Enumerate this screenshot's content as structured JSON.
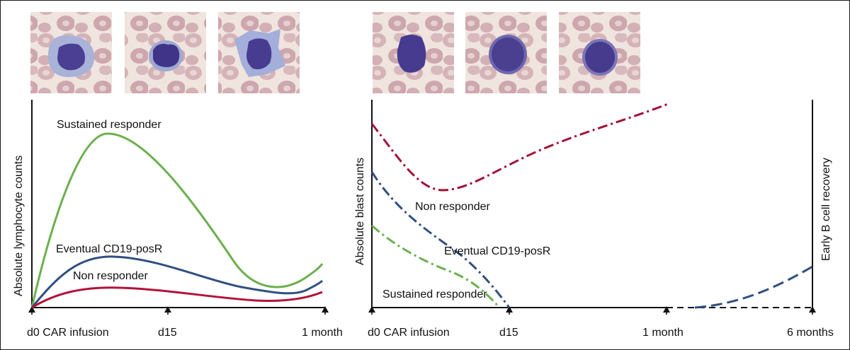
{
  "left_panel": {
    "y_axis_label": "Absolute lymphocyte counts",
    "x_ticks": [
      "d0 CAR infusion",
      "d15",
      "1 month"
    ],
    "curves": [
      {
        "label": "Sustained responder",
        "color": "#6ab04c",
        "style": "solid"
      },
      {
        "label": "Eventual CD19-posR",
        "color": "#2f4f80",
        "style": "solid"
      },
      {
        "label": "Non responder",
        "color": "#b3123a",
        "style": "solid"
      }
    ],
    "images": [
      "lymphocyte-micrograph",
      "lymphocyte-micrograph",
      "lymphocyte-micrograph"
    ]
  },
  "right_panel": {
    "y_axis_label": "Absolute blast counts",
    "x_ticks": [
      "d0 CAR infusion",
      "d15",
      "1 month",
      "6 months"
    ],
    "curves": [
      {
        "label": "Non responder",
        "color": "#a11236",
        "style": "dash-dot"
      },
      {
        "label": "Eventual CD19-posR",
        "color": "#2f4f80",
        "style": "dash-dot"
      },
      {
        "label": "Sustained responder",
        "color": "#6ab04c",
        "style": "dash-dot"
      }
    ],
    "right_axis_label": "Early B cell recovery",
    "images": [
      "blast-micrograph",
      "blast-micrograph",
      "blast-micrograph"
    ]
  },
  "colors": {
    "green": "#6ab04c",
    "blue": "#2f4f80",
    "red": "#b3123a",
    "axis": "#111111",
    "rbc": "#c9a3a9",
    "nucleus": "#4b3d8f",
    "cytoplasm": "#9aa6cf",
    "background_image": "#eadfd8"
  }
}
